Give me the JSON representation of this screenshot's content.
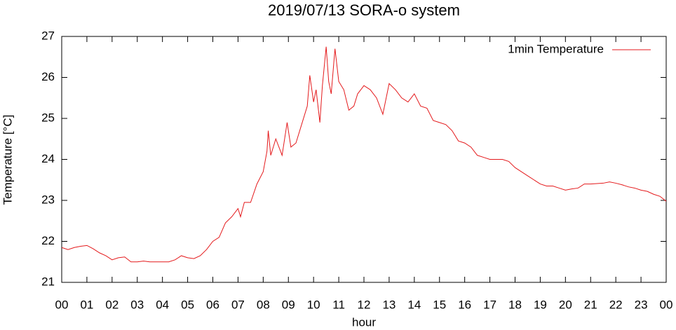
{
  "chart_data": {
    "type": "line",
    "title": "2019/07/13 SORA-o system",
    "x_label": "hour",
    "y_label": "Temperature [°C]",
    "legend": "top-right",
    "x": [
      0,
      0.25,
      0.5,
      0.75,
      1,
      1.25,
      1.5,
      1.75,
      2,
      2.25,
      2.5,
      2.75,
      3,
      3.25,
      3.5,
      3.75,
      4,
      4.25,
      4.5,
      4.75,
      5,
      5.25,
      5.5,
      5.75,
      6,
      6.25,
      6.5,
      6.75,
      7,
      7.1,
      7.25,
      7.5,
      7.75,
      8,
      8.15,
      8.2,
      8.3,
      8.5,
      8.75,
      8.95,
      9.1,
      9.3,
      9.5,
      9.75,
      9.85,
      10,
      10.1,
      10.25,
      10.35,
      10.5,
      10.6,
      10.7,
      10.85,
      11,
      11.2,
      11.4,
      11.6,
      11.75,
      12,
      12.25,
      12.5,
      12.75,
      13,
      13.25,
      13.5,
      13.75,
      14,
      14.25,
      14.5,
      14.75,
      15,
      15.25,
      15.5,
      15.75,
      16,
      16.25,
      16.5,
      16.75,
      17,
      17.25,
      17.5,
      17.75,
      18,
      18.25,
      18.5,
      18.75,
      19,
      19.25,
      19.5,
      19.75,
      20,
      20.25,
      20.5,
      20.75,
      21,
      21.5,
      21.75,
      22,
      22.25,
      22.5,
      22.75,
      23,
      23.25,
      23.5,
      23.75,
      24
    ],
    "series": [
      {
        "name": "1min Temperature",
        "color": "#e41a1c",
        "values": [
          21.85,
          21.8,
          21.85,
          21.88,
          21.9,
          21.82,
          21.72,
          21.65,
          21.55,
          21.6,
          21.62,
          21.5,
          21.5,
          21.52,
          21.5,
          21.5,
          21.5,
          21.5,
          21.55,
          21.65,
          21.6,
          21.58,
          21.65,
          21.8,
          22.0,
          22.1,
          22.45,
          22.6,
          22.8,
          22.6,
          22.95,
          22.95,
          23.4,
          23.7,
          24.2,
          24.7,
          24.1,
          24.5,
          24.1,
          24.9,
          24.3,
          24.4,
          24.8,
          25.3,
          26.05,
          25.4,
          25.7,
          24.9,
          25.8,
          26.75,
          25.9,
          25.6,
          26.7,
          25.9,
          25.7,
          25.2,
          25.3,
          25.6,
          25.8,
          25.7,
          25.5,
          25.1,
          25.85,
          25.7,
          25.5,
          25.4,
          25.6,
          25.3,
          25.25,
          24.95,
          24.9,
          24.85,
          24.7,
          24.45,
          24.4,
          24.3,
          24.1,
          24.05,
          24.0,
          24.0,
          24.0,
          23.95,
          23.8,
          23.7,
          23.6,
          23.5,
          23.4,
          23.35,
          23.35,
          23.3,
          23.25,
          23.28,
          23.3,
          23.4,
          23.4,
          23.42,
          23.45,
          23.42,
          23.38,
          23.33,
          23.3,
          23.25,
          23.22,
          23.15,
          23.1,
          22.98
        ]
      }
    ],
    "xlim": [
      0,
      24
    ],
    "xticks": [
      {
        "value": 0,
        "label": "00"
      },
      {
        "value": 1,
        "label": "01"
      },
      {
        "value": 2,
        "label": "02"
      },
      {
        "value": 3,
        "label": "03"
      },
      {
        "value": 4,
        "label": "04"
      },
      {
        "value": 5,
        "label": "05"
      },
      {
        "value": 6,
        "label": "06"
      },
      {
        "value": 7,
        "label": "07"
      },
      {
        "value": 8,
        "label": "08"
      },
      {
        "value": 9,
        "label": "09"
      },
      {
        "value": 10,
        "label": "10"
      },
      {
        "value": 11,
        "label": "11"
      },
      {
        "value": 12,
        "label": "12"
      },
      {
        "value": 13,
        "label": "13"
      },
      {
        "value": 14,
        "label": "14"
      },
      {
        "value": 15,
        "label": "15"
      },
      {
        "value": 16,
        "label": "16"
      },
      {
        "value": 17,
        "label": "17"
      },
      {
        "value": 18,
        "label": "18"
      },
      {
        "value": 19,
        "label": "19"
      },
      {
        "value": 20,
        "label": "20"
      },
      {
        "value": 21,
        "label": "21"
      },
      {
        "value": 22,
        "label": "22"
      },
      {
        "value": 23,
        "label": "23"
      },
      {
        "value": 24,
        "label": "00"
      }
    ],
    "ylim": [
      21,
      27
    ],
    "yticks": [
      21,
      22,
      23,
      24,
      25,
      26,
      27
    ]
  }
}
